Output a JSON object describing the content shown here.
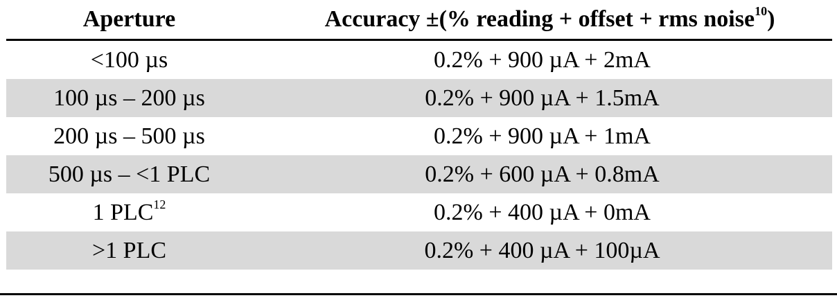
{
  "table": {
    "header": {
      "aperture": "Aperture",
      "accuracy": "Accuracy ±(% reading + offset + rms noise",
      "accuracy_sup": "10",
      "accuracy_close": ")"
    },
    "rows": [
      {
        "aperture": "<100 µs",
        "aperture_sup": "",
        "accuracy": "0.2% + 900 µA + 2mA",
        "shaded": false
      },
      {
        "aperture": "100 µs – 200 µs",
        "aperture_sup": "",
        "accuracy": "0.2% + 900 µA + 1.5mA",
        "shaded": true
      },
      {
        "aperture": "200 µs – 500 µs",
        "aperture_sup": "",
        "accuracy": "0.2% + 900 µA + 1mA",
        "shaded": false
      },
      {
        "aperture": "500 µs – <1 PLC",
        "aperture_sup": "",
        "accuracy": "0.2% + 600 µA + 0.8mA",
        "shaded": true
      },
      {
        "aperture": "1 PLC",
        "aperture_sup": "12",
        "accuracy": "0.2% + 400 µA + 0mA",
        "shaded": false
      },
      {
        "aperture": ">1 PLC",
        "aperture_sup": "",
        "accuracy": "0.2% + 400 µA + 100µA",
        "shaded": true
      }
    ],
    "colors": {
      "shaded_row": "#d9d9d9",
      "rule": "#000000"
    }
  }
}
